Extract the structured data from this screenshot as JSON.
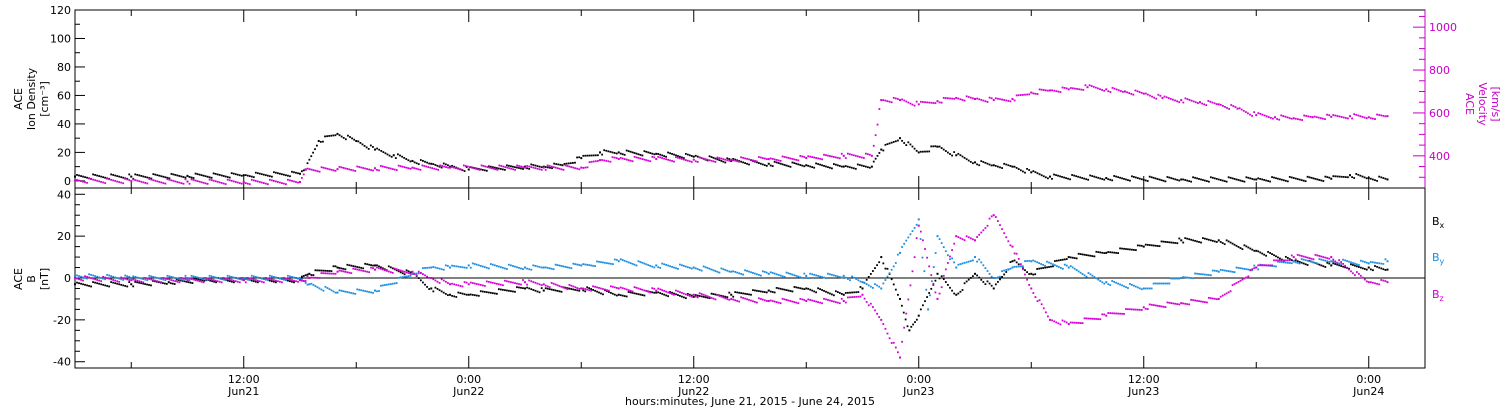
{
  "colors": {
    "black": "#000000",
    "magenta": "#d400d4",
    "blue": "#1a8fe0"
  },
  "chart_data": [
    {
      "type": "scatter",
      "panel": "top",
      "ylabel_lines": [
        "ACE",
        "Ion Density",
        "[cm⁻³]"
      ],
      "ylim": [
        -5,
        120
      ],
      "yticks": [
        0,
        20,
        40,
        60,
        80,
        100,
        120
      ],
      "right_axis": {
        "ylabel_lines": [
          "ACE",
          "Velocity",
          "[km/s]"
        ],
        "ylim": [
          250,
          1080
        ],
        "yticks": [
          400,
          600,
          800,
          1000
        ]
      },
      "x_unit": "hours since 2015-06-21 00:00",
      "xlim": [
        3,
        75
      ],
      "series": [
        {
          "color": "black",
          "axis": "left",
          "points": [
            [
              3,
              3
            ],
            [
              6,
              3
            ],
            [
              9,
              3.5
            ],
            [
              12,
              4
            ],
            [
              15,
              5
            ],
            [
              15.3,
              8
            ],
            [
              16,
              28
            ],
            [
              17,
              33
            ],
            [
              18,
              28
            ],
            [
              19,
              22
            ],
            [
              20,
              18
            ],
            [
              21,
              14
            ],
            [
              22,
              12
            ],
            [
              23,
              10
            ],
            [
              24,
              8
            ],
            [
              27,
              10
            ],
            [
              28,
              10
            ],
            [
              29,
              11
            ],
            [
              30,
              16
            ],
            [
              31,
              20
            ],
            [
              32,
              20
            ],
            [
              34,
              19
            ],
            [
              36,
              17
            ],
            [
              38,
              14
            ],
            [
              40,
              12
            ],
            [
              42,
              11
            ],
            [
              44,
              10
            ],
            [
              45.5,
              10
            ],
            [
              46,
              22
            ],
            [
              47,
              30
            ],
            [
              48,
              20
            ],
            [
              49,
              24
            ],
            [
              50,
              18
            ],
            [
              51,
              13
            ],
            [
              52,
              11
            ],
            [
              53,
              10
            ],
            [
              54,
              6
            ],
            [
              55,
              3
            ],
            [
              58,
              2
            ],
            [
              62,
              1
            ],
            [
              66,
              1
            ],
            [
              70,
              1.5
            ],
            [
              71,
              4
            ],
            [
              72,
              2
            ],
            [
              73,
              1
            ]
          ]
        },
        {
          "color": "magenta",
          "axis": "right",
          "points": [
            [
              3,
              285
            ],
            [
              6,
              282
            ],
            [
              9,
              280
            ],
            [
              12,
              278
            ],
            [
              15,
              278
            ],
            [
              15.3,
              335
            ],
            [
              17,
              338
            ],
            [
              19,
              342
            ],
            [
              21,
              345
            ],
            [
              23,
              345
            ],
            [
              27,
              345
            ],
            [
              28,
              345
            ],
            [
              30,
              345
            ],
            [
              31,
              380
            ],
            [
              32,
              385
            ],
            [
              34,
              385
            ],
            [
              36,
              382
            ],
            [
              38,
              382
            ],
            [
              40,
              385
            ],
            [
              42,
              390
            ],
            [
              44,
              400
            ],
            [
              45.5,
              400
            ],
            [
              46,
              660
            ],
            [
              47,
              660
            ],
            [
              48,
              640
            ],
            [
              49,
              655
            ],
            [
              50,
              670
            ],
            [
              51,
              665
            ],
            [
              52,
              660
            ],
            [
              53,
              665
            ],
            [
              54,
              695
            ],
            [
              55,
              705
            ],
            [
              56,
              710
            ],
            [
              57,
              720
            ],
            [
              58,
              710
            ],
            [
              59,
              700
            ],
            [
              60,
              690
            ],
            [
              61,
              670
            ],
            [
              62,
              660
            ],
            [
              63,
              650
            ],
            [
              64,
              640
            ],
            [
              65,
              620
            ],
            [
              66,
              590
            ],
            [
              67,
              580
            ],
            [
              68,
              575
            ],
            [
              69,
              580
            ],
            [
              70,
              582
            ],
            [
              71,
              585
            ],
            [
              72,
              580
            ],
            [
              73,
              585
            ]
          ]
        }
      ]
    },
    {
      "type": "scatter",
      "panel": "bottom",
      "ylabel_lines": [
        "ACE",
        "B",
        "[nT]"
      ],
      "ylim": [
        -43,
        43
      ],
      "yticks": [
        -40,
        -20,
        0,
        20,
        40
      ],
      "xlabel": "hours:minutes, June 21, 2015 - June 24, 2015",
      "x_tick_labels": [
        [
          "12:00",
          "Jun21"
        ],
        [
          "0:00",
          "Jun22"
        ],
        [
          "12:00",
          "Jun22"
        ],
        [
          "0:00",
          "Jun23"
        ],
        [
          "12:00",
          "Jun23"
        ],
        [
          "0:00",
          "Jun24"
        ]
      ],
      "x_tick_hours": [
        12,
        24,
        36,
        48,
        60,
        72
      ],
      "legend": {
        "placement": "right",
        "entries": [
          {
            "base": "B",
            "sub": "x",
            "color": "black"
          },
          {
            "base": "B",
            "sub": "y",
            "color": "blue"
          },
          {
            "base": "B",
            "sub": "z",
            "color": "magenta"
          }
        ]
      },
      "series": [
        {
          "color": "black",
          "points": [
            [
              3,
              -3
            ],
            [
              6,
              -3
            ],
            [
              8,
              -2
            ],
            [
              10,
              -1
            ],
            [
              12,
              -1
            ],
            [
              15,
              -1
            ],
            [
              15.5,
              2
            ],
            [
              17,
              5
            ],
            [
              19,
              6
            ],
            [
              21,
              2
            ],
            [
              22,
              -5
            ],
            [
              23,
              -8
            ],
            [
              24,
              -8
            ],
            [
              27,
              -5
            ],
            [
              28,
              -6
            ],
            [
              30,
              -5
            ],
            [
              32,
              -8
            ],
            [
              34,
              -7
            ],
            [
              36,
              -9
            ],
            [
              38,
              -8
            ],
            [
              40,
              -6
            ],
            [
              42,
              -5
            ],
            [
              44,
              -8
            ],
            [
              45,
              -5
            ],
            [
              46,
              10
            ],
            [
              47,
              -10
            ],
            [
              47.5,
              -25
            ],
            [
              48,
              -18
            ],
            [
              49,
              2
            ],
            [
              50,
              -8
            ],
            [
              51,
              2
            ],
            [
              52,
              -5
            ],
            [
              53,
              8
            ],
            [
              54,
              2
            ],
            [
              56,
              10
            ],
            [
              58,
              12
            ],
            [
              60,
              15
            ],
            [
              62,
              18
            ],
            [
              64,
              18
            ],
            [
              66,
              13
            ],
            [
              68,
              8
            ],
            [
              70,
              6
            ],
            [
              72,
              5
            ],
            [
              73,
              4
            ]
          ]
        },
        {
          "color": "blue",
          "points": [
            [
              3,
              1
            ],
            [
              6,
              0
            ],
            [
              9,
              0
            ],
            [
              12,
              0
            ],
            [
              15,
              0
            ],
            [
              15.5,
              -3
            ],
            [
              17,
              -7
            ],
            [
              19,
              -6
            ],
            [
              21,
              2
            ],
            [
              22,
              5
            ],
            [
              23,
              5
            ],
            [
              24,
              6
            ],
            [
              27,
              5
            ],
            [
              28,
              5
            ],
            [
              30,
              6
            ],
            [
              32,
              8
            ],
            [
              34,
              6
            ],
            [
              36,
              5
            ],
            [
              38,
              3
            ],
            [
              40,
              2
            ],
            [
              42,
              1
            ],
            [
              44,
              1
            ],
            [
              45,
              -2
            ],
            [
              46,
              -5
            ],
            [
              47,
              12
            ],
            [
              48,
              28
            ],
            [
              48.5,
              -15
            ],
            [
              49,
              20
            ],
            [
              50,
              5
            ],
            [
              51,
              10
            ],
            [
              52,
              0
            ],
            [
              53,
              5
            ],
            [
              54,
              8
            ],
            [
              56,
              5
            ],
            [
              58,
              -2
            ],
            [
              60,
              -5
            ],
            [
              62,
              0
            ],
            [
              64,
              3
            ],
            [
              66,
              5
            ],
            [
              68,
              8
            ],
            [
              70,
              8
            ],
            [
              72,
              7
            ],
            [
              73,
              8
            ]
          ]
        },
        {
          "color": "magenta",
          "points": [
            [
              3,
              0
            ],
            [
              6,
              -1
            ],
            [
              9,
              -1
            ],
            [
              12,
              -1
            ],
            [
              15,
              -1
            ],
            [
              15.5,
              0
            ],
            [
              17,
              3
            ],
            [
              19,
              4
            ],
            [
              21,
              3
            ],
            [
              22,
              0
            ],
            [
              23,
              -3
            ],
            [
              24,
              -3
            ],
            [
              27,
              -2
            ],
            [
              28,
              -3
            ],
            [
              30,
              -5
            ],
            [
              32,
              -5
            ],
            [
              34,
              -6
            ],
            [
              36,
              -8
            ],
            [
              38,
              -10
            ],
            [
              40,
              -11
            ],
            [
              42,
              -11
            ],
            [
              44,
              -11
            ],
            [
              45,
              -8
            ],
            [
              46,
              -20
            ],
            [
              47,
              -38
            ],
            [
              48,
              25
            ],
            [
              49,
              -10
            ],
            [
              50,
              20
            ],
            [
              51,
              18
            ],
            [
              52,
              30
            ],
            [
              53,
              15
            ],
            [
              54,
              -5
            ],
            [
              55,
              -20
            ],
            [
              56,
              -22
            ],
            [
              58,
              -18
            ],
            [
              60,
              -14
            ],
            [
              62,
              -12
            ],
            [
              64,
              -10
            ],
            [
              66,
              5
            ],
            [
              68,
              10
            ],
            [
              70,
              10
            ],
            [
              72,
              -2
            ],
            [
              73,
              -2
            ]
          ]
        }
      ]
    }
  ]
}
